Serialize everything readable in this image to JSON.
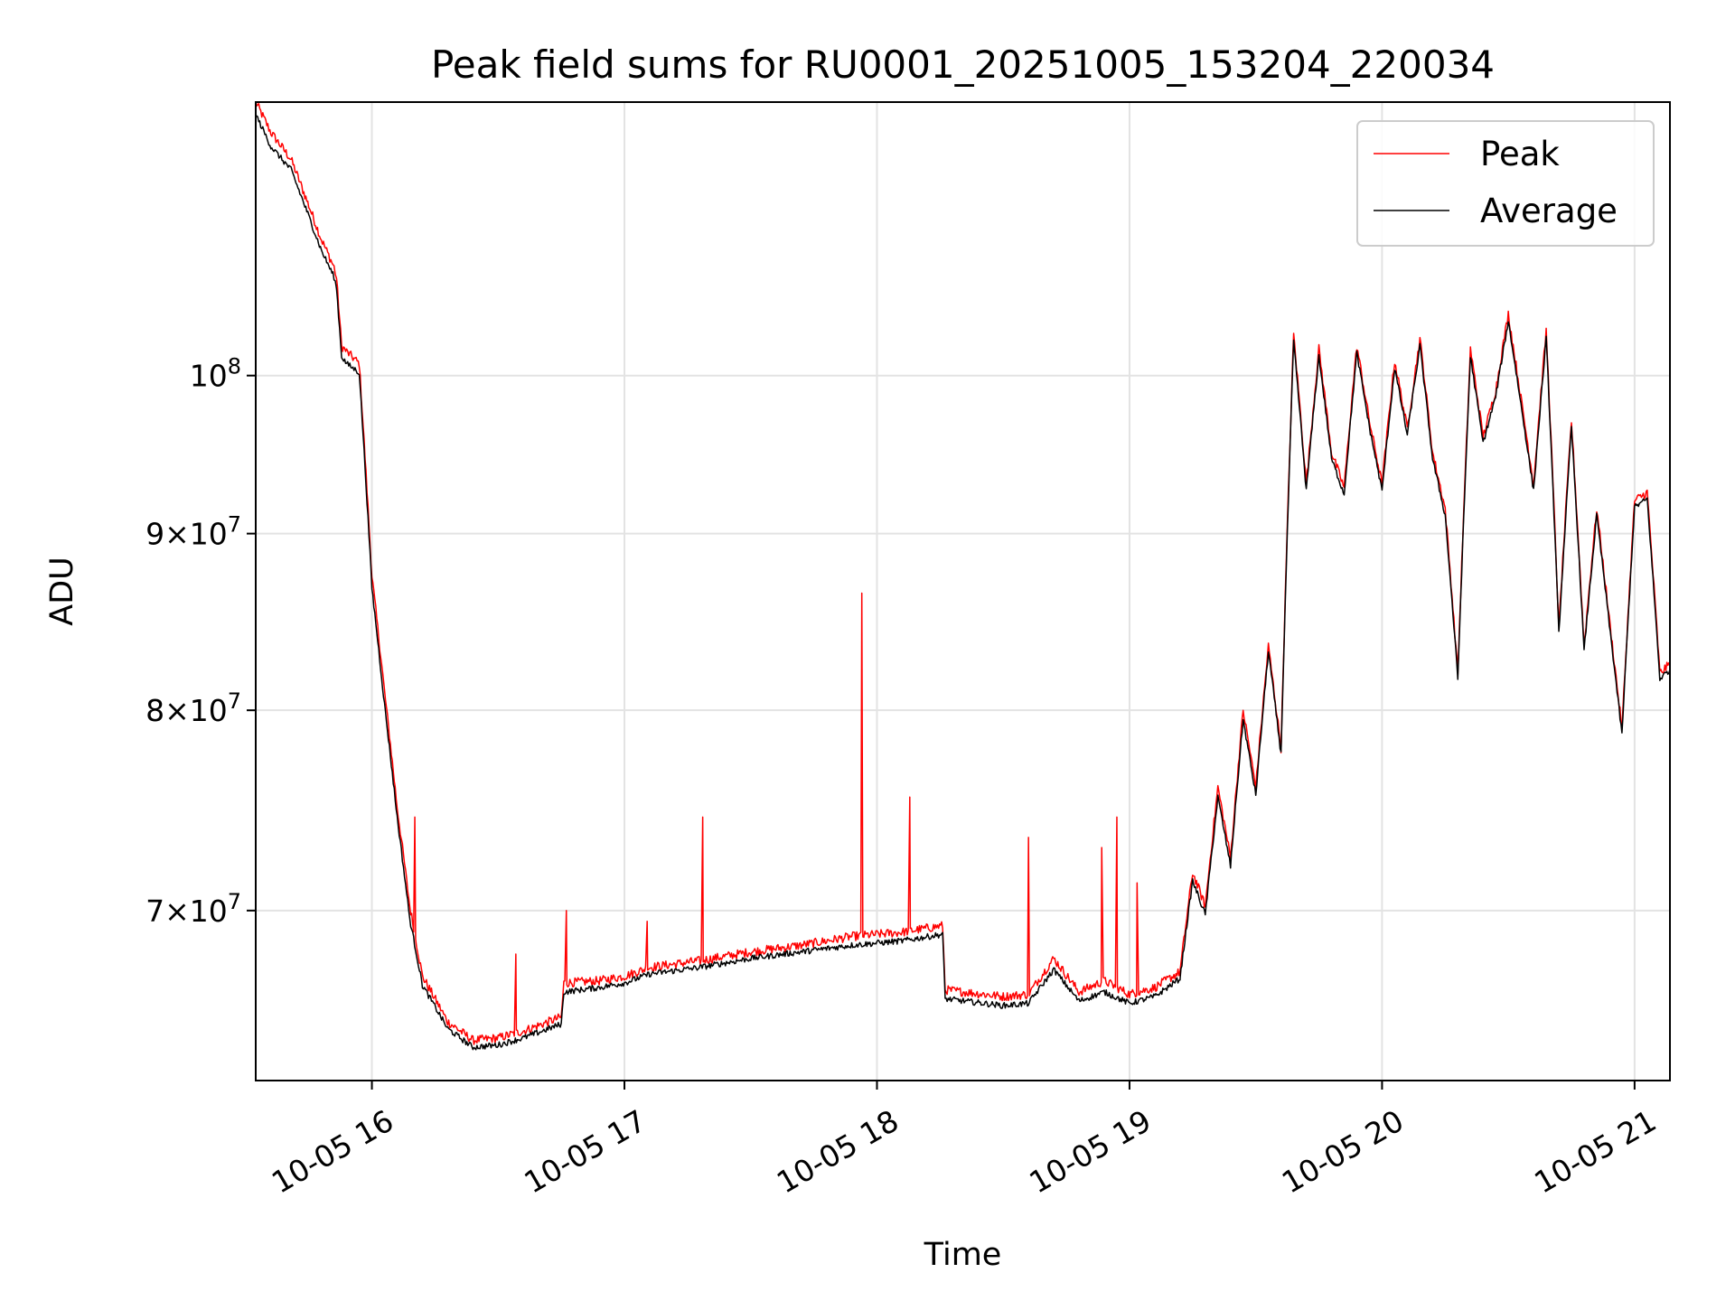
{
  "chart_data": {
    "type": "line",
    "title": "Peak field sums for RU0001_20251005_153204_220034",
    "xlabel": "Time",
    "ylabel": "ADU",
    "yscale": "log",
    "xlim": [
      15.54,
      21.14
    ],
    "ylim": [
      62500000,
      120000000
    ],
    "grid": true,
    "legend_position": "upper right",
    "x_ticks": [
      {
        "value": 16,
        "label": "10-05 16"
      },
      {
        "value": 17,
        "label": "10-05 17"
      },
      {
        "value": 18,
        "label": "10-05 18"
      },
      {
        "value": 19,
        "label": "10-05 19"
      },
      {
        "value": 20,
        "label": "10-05 20"
      },
      {
        "value": 21,
        "label": "10-05 21"
      }
    ],
    "y_ticks": [
      {
        "value": 70000000,
        "mantissa": "7",
        "exponent": "7"
      },
      {
        "value": 80000000,
        "mantissa": "8",
        "exponent": "7"
      },
      {
        "value": 90000000,
        "mantissa": "9",
        "exponent": "7"
      },
      {
        "value": 100000000,
        "mantissa": "",
        "exponent": "8"
      }
    ],
    "tick_symbols": {
      "times": "×",
      "base": "10"
    },
    "series": [
      {
        "name": "Peak",
        "color": "#ff0000",
        "points": [
          [
            15.54,
            120000000
          ],
          [
            15.6,
            117600000
          ],
          [
            15.68,
            115500000
          ],
          [
            15.75,
            112000000
          ],
          [
            15.8,
            109500000
          ],
          [
            15.85,
            107500000
          ],
          [
            15.86,
            106700000
          ],
          [
            15.88,
            102000000
          ],
          [
            15.9,
            101600000
          ],
          [
            15.95,
            100800000
          ],
          [
            16.0,
            87500000
          ],
          [
            16.05,
            81000000
          ],
          [
            16.1,
            75000000
          ],
          [
            16.15,
            70200000
          ],
          [
            16.2,
            67000000
          ],
          [
            16.3,
            65000000
          ],
          [
            16.4,
            64200000
          ],
          [
            16.5,
            64300000
          ],
          [
            16.6,
            64600000
          ],
          [
            16.75,
            65200000
          ],
          [
            16.76,
            66700000
          ],
          [
            16.9,
            66800000
          ],
          [
            17.0,
            67000000
          ],
          [
            17.1,
            67400000
          ],
          [
            17.3,
            67700000
          ],
          [
            17.5,
            68100000
          ],
          [
            17.7,
            68400000
          ],
          [
            17.9,
            68800000
          ],
          [
            18.1,
            69000000
          ],
          [
            18.26,
            69300000
          ],
          [
            18.27,
            66400000
          ],
          [
            18.5,
            66100000
          ],
          [
            18.6,
            66200000
          ],
          [
            18.7,
            67800000
          ],
          [
            18.8,
            66300000
          ],
          [
            18.9,
            66800000
          ],
          [
            19.0,
            66200000
          ],
          [
            19.1,
            66500000
          ],
          [
            19.2,
            67200000
          ],
          [
            19.25,
            71800000
          ],
          [
            19.3,
            70200000
          ],
          [
            19.35,
            76000000
          ],
          [
            19.4,
            72500000
          ],
          [
            19.45,
            80000000
          ],
          [
            19.5,
            76000000
          ],
          [
            19.55,
            83500000
          ],
          [
            19.6,
            78000000
          ],
          [
            19.65,
            102800000
          ],
          [
            19.7,
            93000000
          ],
          [
            19.75,
            101800000
          ],
          [
            19.8,
            95000000
          ],
          [
            19.85,
            92800000
          ],
          [
            19.9,
            102000000
          ],
          [
            19.95,
            97000000
          ],
          [
            20.0,
            93000000
          ],
          [
            20.05,
            101000000
          ],
          [
            20.1,
            96500000
          ],
          [
            20.15,
            102500000
          ],
          [
            20.2,
            95000000
          ],
          [
            20.25,
            91500000
          ],
          [
            20.3,
            82000000
          ],
          [
            20.35,
            101800000
          ],
          [
            20.4,
            96000000
          ],
          [
            20.45,
            99000000
          ],
          [
            20.5,
            104200000
          ],
          [
            20.55,
            98500000
          ],
          [
            20.6,
            93000000
          ],
          [
            20.65,
            103000000
          ],
          [
            20.7,
            84500000
          ],
          [
            20.75,
            97000000
          ],
          [
            20.8,
            83500000
          ],
          [
            20.85,
            91500000
          ],
          [
            20.9,
            85000000
          ],
          [
            20.95,
            79000000
          ],
          [
            21.0,
            92000000
          ],
          [
            21.05,
            92500000
          ],
          [
            21.1,
            82000000
          ],
          [
            21.14,
            82500000
          ]
        ],
        "spikes": [
          [
            16.17,
            74500000
          ],
          [
            16.57,
            68000000
          ],
          [
            16.77,
            70000000
          ],
          [
            17.09,
            69500000
          ],
          [
            17.31,
            74500000
          ],
          [
            17.94,
            86500000
          ],
          [
            18.13,
            75500000
          ],
          [
            18.6,
            73500000
          ],
          [
            18.89,
            73000000
          ],
          [
            18.95,
            74500000
          ],
          [
            19.03,
            71300000
          ]
        ]
      },
      {
        "name": "Average",
        "color": "#000000",
        "points": [
          [
            15.54,
            119000000
          ],
          [
            15.6,
            116500000
          ],
          [
            15.68,
            114700000
          ],
          [
            15.75,
            111200000
          ],
          [
            15.8,
            108700000
          ],
          [
            15.85,
            106800000
          ],
          [
            15.86,
            106000000
          ],
          [
            15.88,
            101300000
          ],
          [
            15.9,
            100800000
          ],
          [
            15.95,
            100200000
          ],
          [
            16.0,
            86800000
          ],
          [
            16.05,
            80300000
          ],
          [
            16.1,
            74500000
          ],
          [
            16.15,
            69600000
          ],
          [
            16.2,
            66600000
          ],
          [
            16.3,
            64700000
          ],
          [
            16.4,
            63900000
          ],
          [
            16.5,
            64000000
          ],
          [
            16.6,
            64300000
          ],
          [
            16.75,
            64900000
          ],
          [
            16.76,
            66300000
          ],
          [
            16.9,
            66500000
          ],
          [
            17.0,
            66700000
          ],
          [
            17.1,
            67100000
          ],
          [
            17.3,
            67400000
          ],
          [
            17.5,
            67800000
          ],
          [
            17.7,
            68100000
          ],
          [
            17.9,
            68400000
          ],
          [
            18.1,
            68600000
          ],
          [
            18.26,
            68900000
          ],
          [
            18.27,
            66000000
          ],
          [
            18.5,
            65700000
          ],
          [
            18.6,
            65800000
          ],
          [
            18.7,
            67300000
          ],
          [
            18.8,
            65900000
          ],
          [
            18.9,
            66300000
          ],
          [
            19.0,
            65800000
          ],
          [
            19.1,
            66100000
          ],
          [
            19.2,
            66900000
          ],
          [
            19.25,
            71400000
          ],
          [
            19.3,
            69800000
          ],
          [
            19.35,
            75500000
          ],
          [
            19.4,
            72100000
          ],
          [
            19.45,
            79500000
          ],
          [
            19.5,
            75600000
          ],
          [
            19.55,
            83200000
          ],
          [
            19.6,
            77700000
          ],
          [
            19.65,
            102300000
          ],
          [
            19.7,
            92600000
          ],
          [
            19.75,
            101300000
          ],
          [
            19.8,
            94600000
          ],
          [
            19.85,
            92400000
          ],
          [
            19.9,
            101500000
          ],
          [
            19.95,
            96600000
          ],
          [
            20.0,
            92600000
          ],
          [
            20.05,
            100500000
          ],
          [
            20.1,
            96100000
          ],
          [
            20.15,
            102000000
          ],
          [
            20.2,
            94600000
          ],
          [
            20.25,
            91100000
          ],
          [
            20.3,
            81700000
          ],
          [
            20.35,
            101300000
          ],
          [
            20.4,
            95600000
          ],
          [
            20.45,
            98600000
          ],
          [
            20.5,
            103700000
          ],
          [
            20.55,
            98100000
          ],
          [
            20.6,
            92600000
          ],
          [
            20.65,
            102500000
          ],
          [
            20.7,
            84200000
          ],
          [
            20.75,
            96600000
          ],
          [
            20.8,
            83200000
          ],
          [
            20.85,
            91100000
          ],
          [
            20.9,
            84700000
          ],
          [
            20.95,
            78700000
          ],
          [
            21.0,
            91600000
          ],
          [
            21.05,
            92100000
          ],
          [
            21.1,
            81700000
          ],
          [
            21.14,
            82200000
          ]
        ]
      }
    ]
  }
}
